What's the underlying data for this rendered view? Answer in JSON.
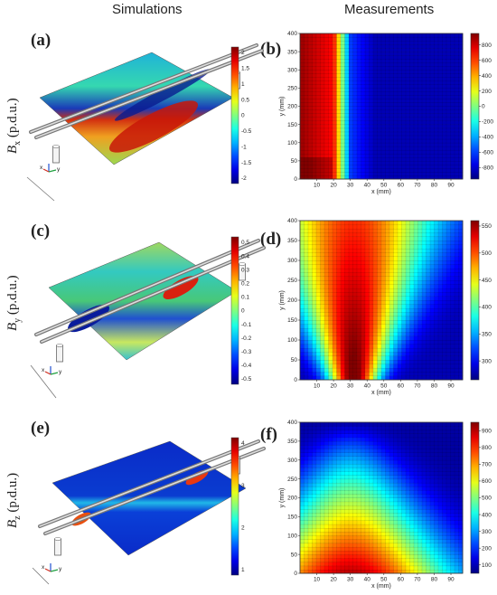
{
  "headers": {
    "left": "Simulations",
    "right": "Measurements"
  },
  "rows": [
    {
      "sim_label": "(a)",
      "meas_label": "(b)",
      "ylabel": "Bx (p.d.u.)",
      "sub": "x",
      "base": "B",
      "suffix": " (p.d.u.)"
    },
    {
      "sim_label": "(c)",
      "meas_label": "(d)",
      "ylabel": "By (p.d.u.)",
      "sub": "y",
      "base": "B",
      "suffix": " (p.d.u.)"
    },
    {
      "sim_label": "(e)",
      "meas_label": "(f)",
      "ylabel": "Bz (p.d.u.)",
      "sub": "z",
      "base": "B",
      "suffix": " (p.d.u.)"
    }
  ],
  "sim_colorbars": [
    {
      "ticks": [
        "2",
        "1.5",
        "1",
        "0.5",
        "0",
        "-0.5",
        "-1",
        "-1.5",
        "-2"
      ]
    },
    {
      "ticks": [
        "0.5",
        "0.4",
        "0.3",
        "0.2",
        "0.1",
        "0",
        "-0.1",
        "-0.2",
        "-0.3",
        "-0.4",
        "-0.5"
      ]
    },
    {
      "ticks": [
        "4",
        "3",
        "2",
        "1"
      ]
    }
  ],
  "triad_labels": {
    "x": "x",
    "y": "y",
    "z": "z"
  },
  "chart_data": [
    {
      "type": "heatmap",
      "panel": "(b)",
      "xlabel": "x (mm)",
      "ylabel": "y (mm)",
      "x_ticks": [
        10,
        20,
        30,
        40,
        50,
        60,
        70,
        80,
        90
      ],
      "y_ticks": [
        0,
        50,
        100,
        150,
        200,
        250,
        300,
        350,
        400
      ],
      "xlim": [
        0,
        97
      ],
      "ylim": [
        0,
        400
      ],
      "colorbar": {
        "min": -950,
        "max": 950,
        "ticks": [
          -800,
          -600,
          -400,
          -200,
          0,
          200,
          400,
          600,
          800
        ]
      },
      "grid": true
    },
    {
      "type": "heatmap",
      "panel": "(d)",
      "xlabel": "x (mm)",
      "ylabel": "y (mm)",
      "x_ticks": [
        10,
        20,
        30,
        40,
        50,
        60,
        70,
        80,
        90
      ],
      "y_ticks": [
        0,
        50,
        100,
        150,
        200,
        250,
        300,
        350,
        400
      ],
      "xlim": [
        0,
        97
      ],
      "ylim": [
        0,
        400
      ],
      "colorbar": {
        "min": 265,
        "max": 560,
        "ticks": [
          300,
          350,
          400,
          450,
          500,
          550
        ]
      },
      "grid": true
    },
    {
      "type": "heatmap",
      "panel": "(f)",
      "xlabel": "x (mm)",
      "ylabel": "y (mm)",
      "x_ticks": [
        10,
        20,
        30,
        40,
        50,
        60,
        70,
        80,
        90
      ],
      "y_ticks": [
        0,
        50,
        100,
        150,
        200,
        250,
        300,
        350,
        400
      ],
      "xlim": [
        0,
        97
      ],
      "ylim": [
        0,
        400
      ],
      "colorbar": {
        "min": 50,
        "max": 950,
        "ticks": [
          100,
          200,
          300,
          400,
          500,
          600,
          700,
          800,
          900
        ]
      },
      "grid": true
    }
  ]
}
